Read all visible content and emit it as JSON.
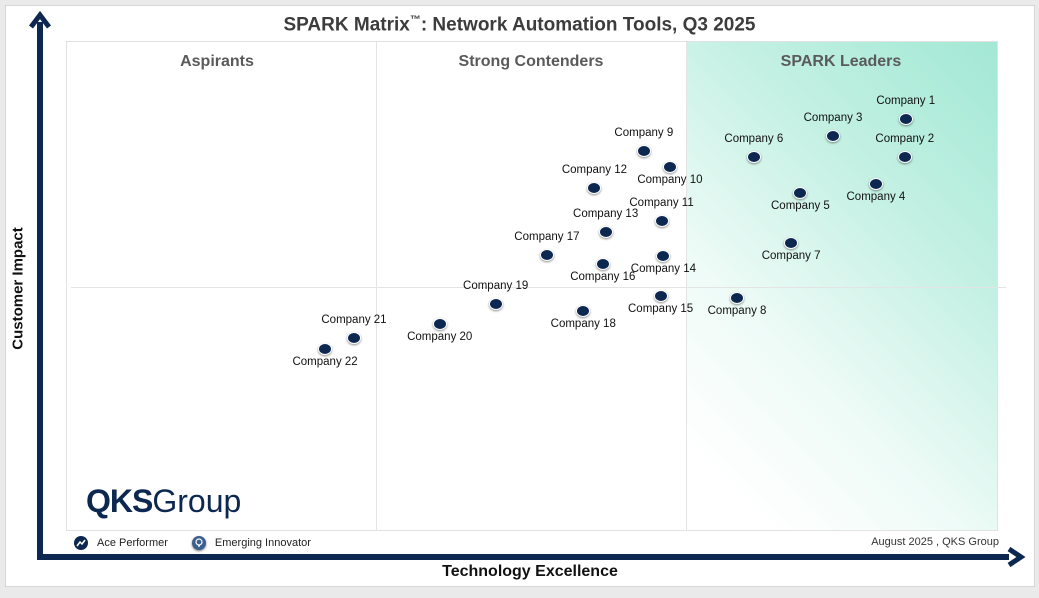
{
  "chart_data": {
    "type": "scatter",
    "title": "SPARK Matrix™: Network Automation Tools, Q3 2025",
    "title_main": "SPARK Matrix",
    "title_tm": "™",
    "title_rest": ": Network Automation Tools, Q3 2025",
    "xlabel": "Technology Excellence",
    "ylabel": "Customer Impact",
    "xlim": [
      0,
      100
    ],
    "ylim": [
      0,
      100
    ],
    "quadrants": [
      "Aspirants",
      "Strong Contenders",
      "SPARK Leaders"
    ],
    "points": [
      {
        "name": "Company 1",
        "x": 90.1,
        "y": 84.1,
        "label_pos": "above"
      },
      {
        "name": "Company 2",
        "x": 90.0,
        "y": 76.3,
        "label_pos": "above"
      },
      {
        "name": "Company 3",
        "x": 82.3,
        "y": 80.6,
        "label_pos": "above"
      },
      {
        "name": "Company 4",
        "x": 86.9,
        "y": 70.8,
        "label_pos": "below"
      },
      {
        "name": "Company 5",
        "x": 78.8,
        "y": 69.0,
        "label_pos": "below"
      },
      {
        "name": "Company 6",
        "x": 73.8,
        "y": 76.3,
        "label_pos": "above"
      },
      {
        "name": "Company 7",
        "x": 77.8,
        "y": 58.8,
        "label_pos": "below"
      },
      {
        "name": "Company 8",
        "x": 72.0,
        "y": 47.6,
        "label_pos": "below"
      },
      {
        "name": "Company 9",
        "x": 62.0,
        "y": 77.6,
        "label_pos": "above"
      },
      {
        "name": "Company 10",
        "x": 64.8,
        "y": 74.3,
        "label_pos": "below"
      },
      {
        "name": "Company 11",
        "x": 63.9,
        "y": 63.3,
        "label_pos": "above"
      },
      {
        "name": "Company 12",
        "x": 56.7,
        "y": 70.0,
        "label_pos": "above"
      },
      {
        "name": "Company 13",
        "x": 57.9,
        "y": 61.0,
        "label_pos": "above"
      },
      {
        "name": "Company 14",
        "x": 64.1,
        "y": 56.1,
        "label_pos": "below"
      },
      {
        "name": "Company 15",
        "x": 63.8,
        "y": 48.0,
        "label_pos": "below"
      },
      {
        "name": "Company 16",
        "x": 57.6,
        "y": 54.5,
        "label_pos": "below"
      },
      {
        "name": "Company 17",
        "x": 51.6,
        "y": 56.3,
        "label_pos": "above"
      },
      {
        "name": "Company 18",
        "x": 55.5,
        "y": 44.9,
        "label_pos": "below"
      },
      {
        "name": "Company 19",
        "x": 46.1,
        "y": 46.3,
        "label_pos": "above"
      },
      {
        "name": "Company 20",
        "x": 40.1,
        "y": 42.2,
        "label_pos": "below"
      },
      {
        "name": "Company 21",
        "x": 30.9,
        "y": 39.4,
        "label_pos": "above"
      },
      {
        "name": "Company 22",
        "x": 27.8,
        "y": 37.1,
        "label_pos": "below"
      }
    ],
    "legend": [
      "Ace Performer",
      "Emerging Innovator"
    ],
    "grid": false
  },
  "logo": {
    "bold": "QKS",
    "light": "Group"
  },
  "credit": "August  2025 , QKS Group",
  "colors": {
    "point": "#0c2750",
    "axis": "#0c2750",
    "leaders_gradient": "#a2e8d4"
  }
}
